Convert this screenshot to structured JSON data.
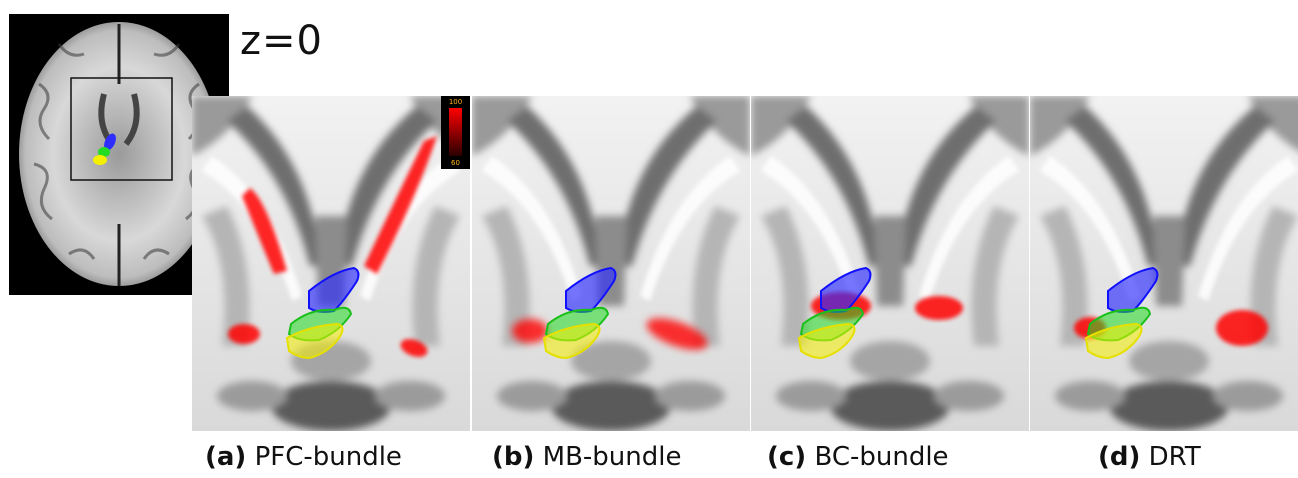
{
  "overview": {
    "label": "z=0"
  },
  "colorbar": {
    "max": "100",
    "min": "60",
    "colors": [
      "#ff0000",
      "#2a0000"
    ]
  },
  "panels": [
    {
      "letter": "(a)",
      "name": "PFC-bundle"
    },
    {
      "letter": "(b)",
      "name": "MB-bundle"
    },
    {
      "letter": "(c)",
      "name": "BC-bundle"
    },
    {
      "letter": "(d)",
      "name": "DRT"
    }
  ],
  "colors": {
    "overlay_red": "#ff0000",
    "blue_region": "#2d2dff",
    "green_region": "#22dd22",
    "yellow_region": "#f5f000"
  }
}
